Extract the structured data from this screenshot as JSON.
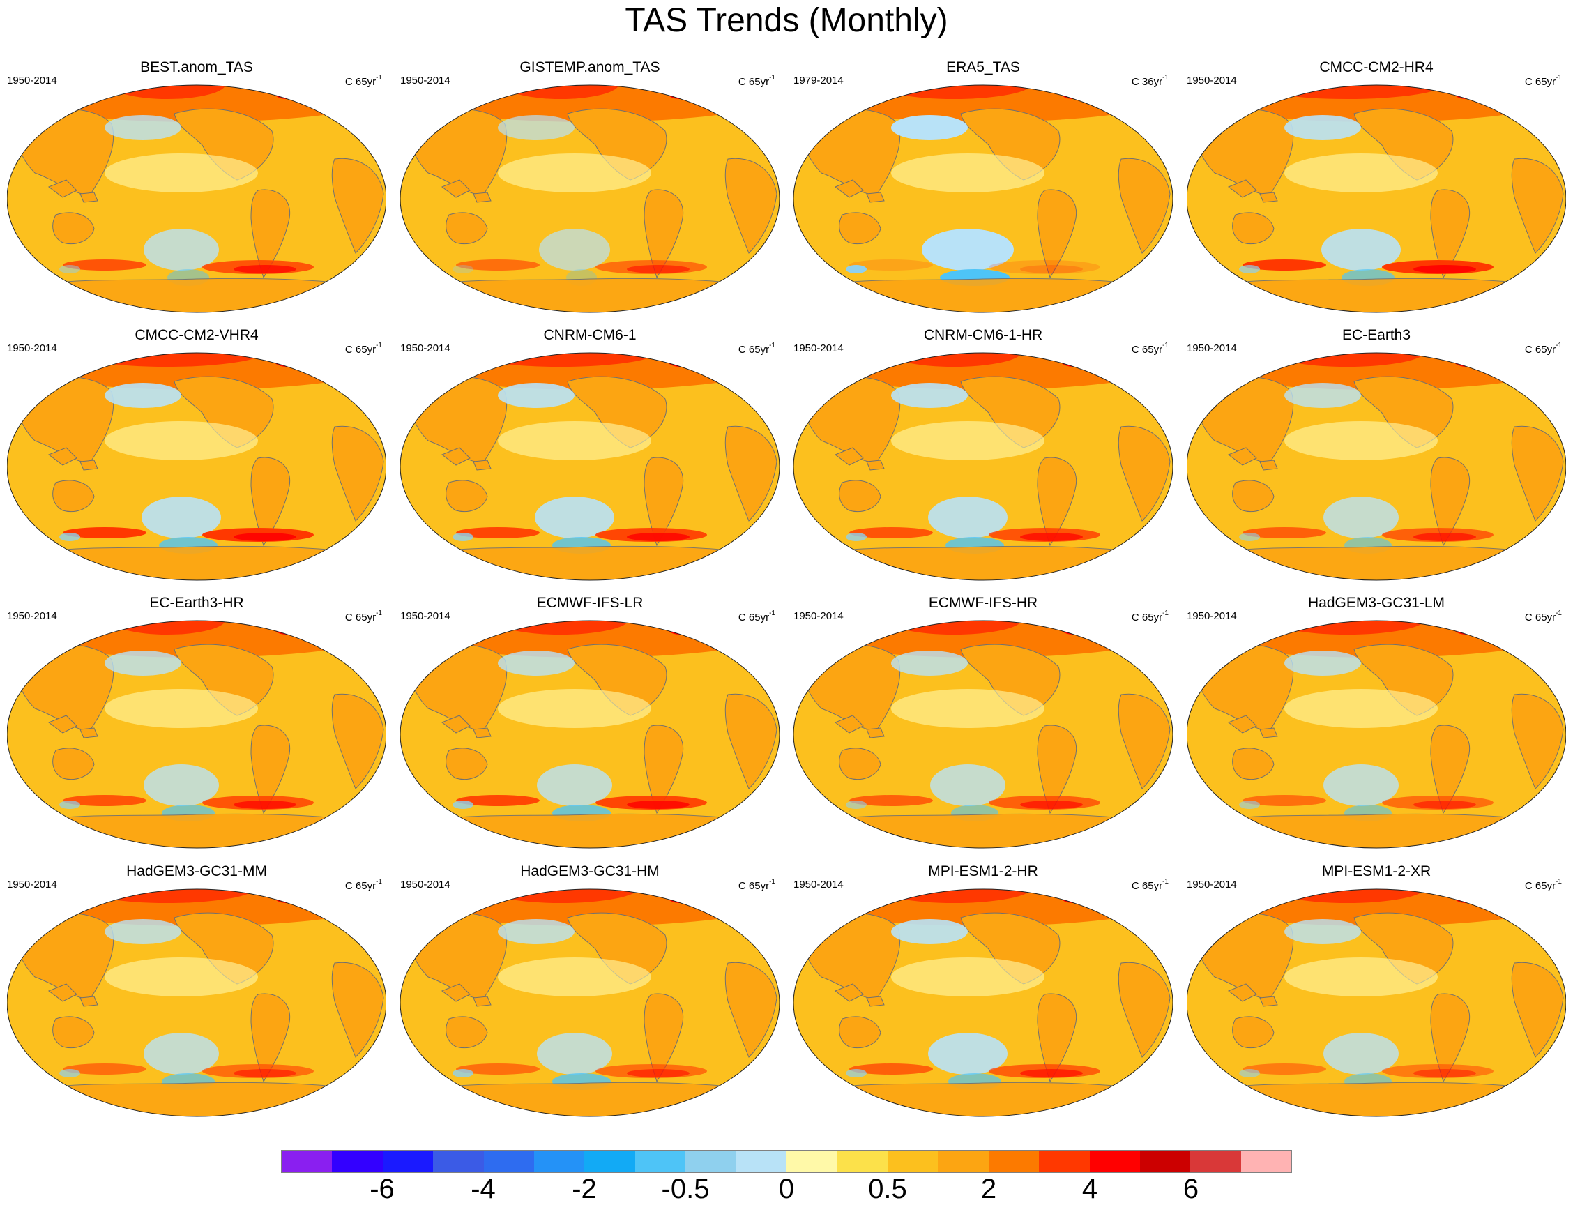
{
  "title": "TAS Trends (Monthly)",
  "panels": [
    {
      "name": "BEST.anom_TAS",
      "period": "1950-2014",
      "units": "C 65yr",
      "units_exp": "-1"
    },
    {
      "name": "GISTEMP.anom_TAS",
      "period": "1950-2014",
      "units": "C 65yr",
      "units_exp": "-1"
    },
    {
      "name": "ERA5_TAS",
      "period": "1979-2014",
      "units": "C 36yr",
      "units_exp": "-1"
    },
    {
      "name": "CMCC-CM2-HR4",
      "period": "1950-2014",
      "units": "C 65yr",
      "units_exp": "-1"
    },
    {
      "name": "CMCC-CM2-VHR4",
      "period": "1950-2014",
      "units": "C 65yr",
      "units_exp": "-1"
    },
    {
      "name": "CNRM-CM6-1",
      "period": "1950-2014",
      "units": "C 65yr",
      "units_exp": "-1"
    },
    {
      "name": "CNRM-CM6-1-HR",
      "period": "1950-2014",
      "units": "C 65yr",
      "units_exp": "-1"
    },
    {
      "name": "EC-Earth3",
      "period": "1950-2014",
      "units": "C 65yr",
      "units_exp": "-1"
    },
    {
      "name": "EC-Earth3-HR",
      "period": "1950-2014",
      "units": "C 65yr",
      "units_exp": "-1"
    },
    {
      "name": "ECMWF-IFS-LR",
      "period": "1950-2014",
      "units": "C 65yr",
      "units_exp": "-1"
    },
    {
      "name": "ECMWF-IFS-HR",
      "period": "1950-2014",
      "units": "C 65yr",
      "units_exp": "-1"
    },
    {
      "name": "HadGEM3-GC31-LM",
      "period": "1950-2014",
      "units": "C 65yr",
      "units_exp": "-1"
    },
    {
      "name": "HadGEM3-GC31-MM",
      "period": "1950-2014",
      "units": "C 65yr",
      "units_exp": "-1"
    },
    {
      "name": "HadGEM3-GC31-HM",
      "period": "1950-2014",
      "units": "C 65yr",
      "units_exp": "-1"
    },
    {
      "name": "MPI-ESM1-2-HR",
      "period": "1950-2014",
      "units": "C 65yr",
      "units_exp": "-1"
    },
    {
      "name": "MPI-ESM1-2-XR",
      "period": "1950-2014",
      "units": "C 65yr",
      "units_exp": "-1"
    }
  ],
  "colorbar": {
    "colors": [
      "#8a1ff0",
      "#3300ff",
      "#1a1aff",
      "#3b5be6",
      "#2e6cf0",
      "#2492f7",
      "#12aaf5",
      "#4ec4f7",
      "#8fd0ee",
      "#b8e2f7",
      "#fff9a8",
      "#fce14a",
      "#fcc01e",
      "#fca512",
      "#fc7a00",
      "#ff3800",
      "#ff0000",
      "#cc0000",
      "#d93838",
      "#ffb3b3"
    ],
    "labels": [
      "-6",
      "-4",
      "-2",
      "-0.5",
      "0",
      "0.5",
      "2",
      "4",
      "6"
    ]
  },
  "map_colors": {
    "ocean_base": "#fcc01e",
    "land_warm": "#fca512",
    "polar_hot": "#fc7a00",
    "hotspot": "#ff3800",
    "extreme": "#ff0000",
    "light_warm": "#fff9a8",
    "cool": "#b8e2f7",
    "cooler": "#8fd0ee",
    "cold": "#4ec4f7",
    "coast": "#707070"
  }
}
